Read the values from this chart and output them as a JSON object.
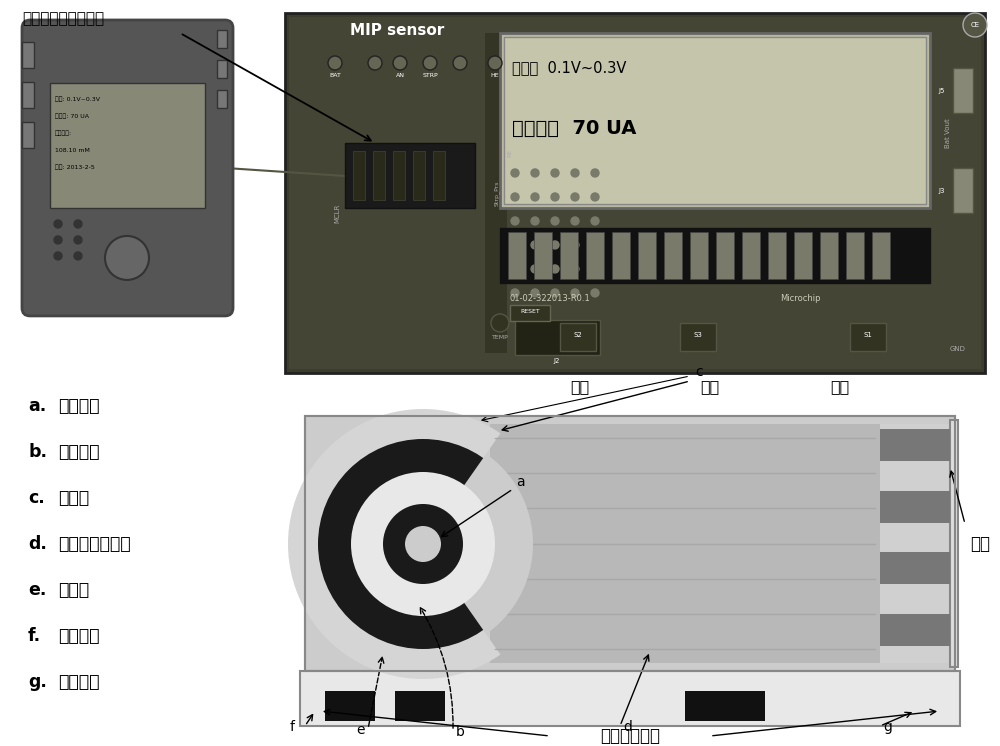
{
  "bg_color": "#ffffff",
  "top_label": "丝网印刷电极插入口",
  "mip_label": "MIP sensor",
  "display_line1": "电压：  0.1V~0.3V",
  "display_line2": "峰电流：  70 UA",
  "bottom_labels": [
    "测试",
    "标准",
    "校正"
  ],
  "legend_items": [
    [
      "a.",
      "工作电极"
    ],
    [
      "b.",
      "参比电极"
    ],
    [
      "c.",
      "对电极"
    ],
    [
      "d.",
      "分子印迹聚合层"
    ],
    [
      "e.",
      "绝缘层"
    ],
    [
      "f.",
      "电极基片"
    ],
    [
      "g.",
      "接线端子"
    ]
  ],
  "electrode_label": "丝网印刷电极",
  "port_label": "插口",
  "pcb_color": "#4a4a3a",
  "pcb_edge": "#333333",
  "lcd_color": "#c8c8b0",
  "white": "#ffffff",
  "black": "#111111",
  "light_gray": "#cccccc",
  "mid_gray": "#999999",
  "dark_gray": "#555555"
}
